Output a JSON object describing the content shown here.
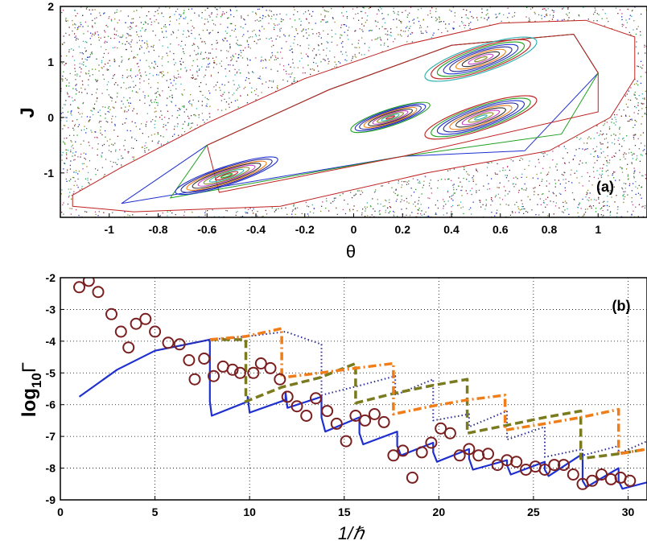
{
  "chart_data": [
    {
      "type": "scatter",
      "panel_label": "(a)",
      "xlabel": "θ",
      "ylabel": "J",
      "xlim": [
        -1.2,
        1.2
      ],
      "ylim": [
        -1.8,
        2.0
      ],
      "xticks": [
        "-1",
        "-0.8",
        "-0.6",
        "-0.4",
        "-0.2",
        "0",
        "0.2",
        "0.4",
        "0.6",
        "0.8",
        "1"
      ],
      "yticks": [
        "-1",
        "0",
        "1",
        "2"
      ],
      "grid": false,
      "islands": [
        {
          "center": [
            -0.52,
            -1.05
          ],
          "rx": 0.22,
          "ry": 0.22
        },
        {
          "center": [
            0.15,
            0.0
          ],
          "rx": 0.17,
          "ry": 0.2
        },
        {
          "center": [
            0.52,
            0.0
          ],
          "rx": 0.24,
          "ry": 0.3
        },
        {
          "center": [
            0.52,
            1.05
          ],
          "rx": 0.24,
          "ry": 0.32
        }
      ]
    },
    {
      "type": "line",
      "panel_label": "(b)",
      "xlabel": "1/ℏ",
      "ylabel": "log10Γ",
      "ylabel_main": "log",
      "ylabel_sub": "10",
      "ylabel_sym": "Γ",
      "xlim": [
        0,
        31
      ],
      "ylim": [
        -9,
        -2
      ],
      "xticks": [
        "0",
        "5",
        "10",
        "15",
        "20",
        "25",
        "30"
      ],
      "yticks": [
        "-2",
        "-3",
        "-4",
        "-5",
        "-6",
        "-7",
        "-8",
        "-9"
      ],
      "grid": true,
      "series": [
        {
          "style": "markers",
          "color": "#7a1f1f",
          "points": [
            [
              1.0,
              -2.3
            ],
            [
              1.5,
              -2.1
            ],
            [
              2.0,
              -2.45
            ],
            [
              2.7,
              -3.15
            ],
            [
              3.2,
              -3.7
            ],
            [
              3.6,
              -4.2
            ],
            [
              4.0,
              -3.45
            ],
            [
              4.5,
              -3.3
            ],
            [
              5.0,
              -3.7
            ],
            [
              5.7,
              -4.05
            ],
            [
              6.3,
              -4.1
            ],
            [
              6.8,
              -4.6
            ],
            [
              7.1,
              -5.2
            ],
            [
              7.6,
              -4.55
            ],
            [
              8.1,
              -5.1
            ],
            [
              8.6,
              -4.8
            ],
            [
              9.1,
              -4.9
            ],
            [
              9.5,
              -5.0
            ],
            [
              10.2,
              -5.0
            ],
            [
              10.6,
              -4.7
            ],
            [
              11.1,
              -4.85
            ],
            [
              11.6,
              -5.2
            ],
            [
              12.0,
              -5.75
            ],
            [
              12.5,
              -6.05
            ],
            [
              13.0,
              -6.35
            ],
            [
              13.5,
              -5.8
            ],
            [
              14.1,
              -6.2
            ],
            [
              14.6,
              -6.6
            ],
            [
              15.1,
              -7.15
            ],
            [
              15.6,
              -6.35
            ],
            [
              16.1,
              -6.5
            ],
            [
              16.6,
              -6.3
            ],
            [
              17.1,
              -6.55
            ],
            [
              17.6,
              -7.6
            ],
            [
              18.1,
              -7.45
            ],
            [
              18.6,
              -8.3
            ],
            [
              19.1,
              -7.5
            ],
            [
              19.6,
              -7.2
            ],
            [
              20.1,
              -6.75
            ],
            [
              20.6,
              -6.9
            ],
            [
              21.1,
              -7.6
            ],
            [
              21.6,
              -7.4
            ],
            [
              22.1,
              -7.6
            ],
            [
              22.6,
              -7.55
            ],
            [
              23.1,
              -7.9
            ],
            [
              23.6,
              -7.75
            ],
            [
              24.1,
              -7.8
            ],
            [
              24.6,
              -8.05
            ],
            [
              25.1,
              -7.95
            ],
            [
              25.6,
              -8.05
            ],
            [
              26.1,
              -7.9
            ],
            [
              26.6,
              -7.9
            ],
            [
              27.1,
              -8.2
            ],
            [
              27.6,
              -8.5
            ],
            [
              28.1,
              -8.4
            ],
            [
              28.6,
              -8.2
            ],
            [
              29.1,
              -8.35
            ],
            [
              29.6,
              -8.3
            ],
            [
              30.1,
              -8.4
            ]
          ]
        },
        {
          "style": "solid",
          "color": "#1f2fd0",
          "points": [
            [
              1.0,
              -5.75
            ],
            [
              3.0,
              -4.9
            ],
            [
              5.0,
              -4.3
            ],
            [
              7.9,
              -3.95
            ],
            [
              7.9,
              -5.9
            ],
            [
              8.0,
              -6.35
            ],
            [
              9.9,
              -5.9
            ],
            [
              9.9,
              -5.75
            ],
            [
              10.0,
              -6.25
            ],
            [
              11.9,
              -5.85
            ],
            [
              11.9,
              -5.6
            ],
            [
              12.0,
              -6.1
            ],
            [
              13.8,
              -5.75
            ],
            [
              13.8,
              -6.4
            ],
            [
              14.0,
              -6.85
            ],
            [
              15.8,
              -6.4
            ],
            [
              15.8,
              -6.9
            ],
            [
              16.0,
              -7.25
            ],
            [
              17.8,
              -6.85
            ],
            [
              17.8,
              -7.3
            ],
            [
              18.0,
              -7.6
            ],
            [
              19.7,
              -7.2
            ],
            [
              19.7,
              -7.5
            ],
            [
              19.9,
              -7.8
            ],
            [
              21.6,
              -7.4
            ],
            [
              21.6,
              -7.7
            ],
            [
              21.8,
              -8.05
            ],
            [
              23.6,
              -7.75
            ],
            [
              23.6,
              -7.9
            ],
            [
              23.8,
              -8.2
            ],
            [
              25.6,
              -7.8
            ],
            [
              25.6,
              -8.05
            ],
            [
              25.8,
              -8.25
            ],
            [
              27.6,
              -7.55
            ],
            [
              27.6,
              -8.4
            ],
            [
              27.8,
              -8.6
            ],
            [
              29.5,
              -8.0
            ],
            [
              29.5,
              -8.4
            ],
            [
              29.7,
              -8.65
            ],
            [
              31.0,
              -8.45
            ]
          ]
        },
        {
          "style": "dotted",
          "color": "#2a2a9a",
          "points": [
            [
              5.0,
              -4.3
            ],
            [
              7.9,
              -3.95
            ],
            [
              9.9,
              -3.85
            ],
            [
              11.9,
              -3.7
            ],
            [
              13.8,
              -4.1
            ],
            [
              13.8,
              -5.7
            ],
            [
              15.8,
              -5.4
            ],
            [
              17.7,
              -5.1
            ],
            [
              17.7,
              -5.7
            ],
            [
              19.7,
              -5.2
            ],
            [
              19.7,
              -6.5
            ],
            [
              21.6,
              -6.3
            ],
            [
              21.6,
              -6.7
            ],
            [
              23.6,
              -6.2
            ],
            [
              23.6,
              -7.1
            ],
            [
              25.6,
              -6.7
            ],
            [
              25.6,
              -7.65
            ],
            [
              27.6,
              -7.4
            ],
            [
              27.6,
              -7.6
            ],
            [
              29.5,
              -7.3
            ],
            [
              29.5,
              -7.55
            ],
            [
              31.0,
              -7.15
            ]
          ]
        },
        {
          "style": "dashed",
          "color": "#7a7a1f",
          "points": [
            [
              7.9,
              -3.95
            ],
            [
              9.8,
              -3.95
            ],
            [
              9.8,
              -5.9
            ],
            [
              11.7,
              -5.45
            ],
            [
              13.7,
              -5.15
            ],
            [
              15.6,
              -4.7
            ],
            [
              15.6,
              -5.95
            ],
            [
              17.6,
              -5.65
            ],
            [
              19.6,
              -5.4
            ],
            [
              21.5,
              -5.2
            ],
            [
              21.5,
              -6.9
            ],
            [
              23.6,
              -6.65
            ],
            [
              25.6,
              -6.4
            ],
            [
              27.5,
              -6.2
            ],
            [
              27.5,
              -7.7
            ],
            [
              29.5,
              -7.55
            ],
            [
              31.0,
              -7.4
            ]
          ]
        },
        {
          "style": "dashdot",
          "color": "#f07d17",
          "points": [
            [
              7.9,
              -3.95
            ],
            [
              9.8,
              -3.85
            ],
            [
              11.7,
              -3.6
            ],
            [
              11.7,
              -5.15
            ],
            [
              13.7,
              -5.0
            ],
            [
              15.6,
              -4.85
            ],
            [
              17.6,
              -4.7
            ],
            [
              17.6,
              -6.3
            ],
            [
              19.6,
              -6.05
            ],
            [
              21.5,
              -5.85
            ],
            [
              23.5,
              -5.7
            ],
            [
              23.5,
              -6.8
            ],
            [
              25.6,
              -6.6
            ],
            [
              27.5,
              -6.4
            ],
            [
              29.5,
              -6.15
            ],
            [
              29.5,
              -7.55
            ],
            [
              31.0,
              -7.4
            ]
          ]
        }
      ]
    }
  ]
}
